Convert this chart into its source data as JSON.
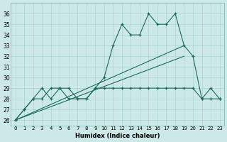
{
  "xlabel": "Humidex (Indice chaleur)",
  "background_color": "#cce9e8",
  "grid_color": "#aad4d3",
  "line_color": "#1a6b5a",
  "xlim": [
    -0.5,
    23.5
  ],
  "ylim": [
    25.5,
    37.0
  ],
  "yticks": [
    26,
    27,
    28,
    29,
    30,
    31,
    32,
    33,
    34,
    35,
    36
  ],
  "xticks": [
    0,
    1,
    2,
    3,
    4,
    5,
    6,
    7,
    8,
    9,
    10,
    11,
    12,
    13,
    14,
    15,
    16,
    17,
    18,
    19,
    20,
    21,
    22,
    23
  ],
  "series1": [
    26,
    27,
    28,
    28,
    29,
    29,
    28,
    28,
    28,
    29,
    30,
    33,
    35,
    34,
    34,
    36,
    35,
    35,
    36,
    33,
    32,
    28,
    29,
    28
  ],
  "series2": [
    26,
    27,
    28,
    29,
    28,
    29,
    29,
    28,
    28,
    29,
    29,
    29,
    29,
    29,
    29,
    29,
    29,
    29,
    29,
    29,
    29,
    28,
    28,
    28
  ],
  "diag1_x0": 0,
  "diag1_y0": 26,
  "diag1_x1": 19,
  "diag1_y1": 33,
  "diag2_x0": 0,
  "diag2_y0": 26,
  "diag2_x1": 19,
  "diag2_y1": 32
}
